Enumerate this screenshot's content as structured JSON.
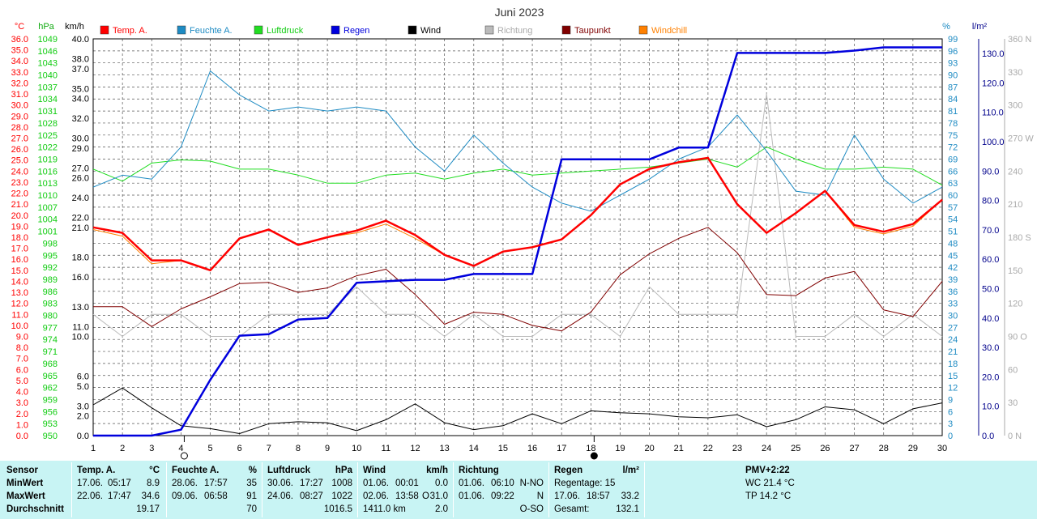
{
  "chart_data": {
    "type": "line",
    "title": "Juni 2023",
    "x": [
      1,
      2,
      3,
      4,
      5,
      6,
      7,
      8,
      9,
      10,
      11,
      12,
      13,
      14,
      15,
      16,
      17,
      18,
      19,
      20,
      21,
      22,
      23,
      24,
      25,
      26,
      27,
      28,
      29,
      30
    ],
    "x_moon_markers": [
      {
        "day": 4,
        "phase": "new"
      },
      {
        "day": 18,
        "phase": "full"
      }
    ],
    "axis_units": {
      "temp": "°C",
      "pressure": "hPa",
      "wind": "km/h",
      "humidity": "%",
      "rain": "l/m²",
      "direction": "°"
    },
    "axes": {
      "temp": {
        "ylim": [
          0,
          36
        ],
        "ticks": [
          "0.0",
          "1.0",
          "2.0",
          "3.0",
          "4.0",
          "5.0",
          "6.0",
          "7.0",
          "8.0",
          "9.0",
          "10.0",
          "11.0",
          "12.0",
          "13.0",
          "14.0",
          "15.0",
          "16.0",
          "17.0",
          "18.0",
          "19.0",
          "20.0",
          "21.0",
          "22.0",
          "23.0",
          "24.0",
          "25.0",
          "26.0",
          "27.0",
          "28.0",
          "29.0",
          "30.0",
          "31.0",
          "32.0",
          "33.0",
          "34.0",
          "35.0",
          "36.0"
        ]
      },
      "pressure": {
        "ylim": [
          950,
          1049
        ],
        "ticks": [
          "950",
          "953",
          "956",
          "959",
          "962",
          "965",
          "968",
          "971",
          "974",
          "977",
          "980",
          "983",
          "986",
          "989",
          "992",
          "995",
          "998",
          "1001",
          "1004",
          "1007",
          "1010",
          "1013",
          "1016",
          "1019",
          "1022",
          "1025",
          "1028",
          "1031",
          "1034",
          "1037",
          "1040",
          "1043",
          "1046",
          "1049"
        ]
      },
      "wind": {
        "ylim": [
          0,
          40
        ],
        "ticks": [
          "0.0",
          "2.0",
          "3.0",
          "5.0",
          "6.0",
          "10.0",
          "11.0",
          "13.0",
          "16.0",
          "18.0",
          "21.0",
          "22.0",
          "24.0",
          "26.0",
          "27.0",
          "29.0",
          "30.0",
          "32.0",
          "34.0",
          "35.0",
          "37.0",
          "38.0",
          "40.0"
        ],
        "tick_values": [
          0,
          2,
          3,
          5,
          6,
          10,
          11,
          13,
          16,
          18,
          21,
          22,
          24,
          26,
          27,
          29,
          30,
          32,
          34,
          35,
          37,
          38,
          40
        ]
      },
      "humidity": {
        "ylim": [
          0,
          99
        ],
        "ticks": [
          "0",
          "3",
          "6",
          "9",
          "12",
          "15",
          "18",
          "21",
          "24",
          "27",
          "30",
          "33",
          "36",
          "39",
          "42",
          "45",
          "48",
          "51",
          "54",
          "57",
          "60",
          "63",
          "66",
          "69",
          "72",
          "75",
          "78",
          "81",
          "84",
          "87",
          "90",
          "93",
          "96",
          "99"
        ]
      },
      "rain": {
        "ylim": [
          0,
          135
        ],
        "ticks": [
          "0.0",
          "10.0",
          "20.0",
          "30.0",
          "40.0",
          "50.0",
          "60.0",
          "70.0",
          "80.0",
          "90.0",
          "100.0",
          "110.0",
          "120.0",
          "130.0"
        ]
      },
      "direction": {
        "ylim": [
          0,
          360
        ],
        "ticks": [
          "0 N",
          "30",
          "60",
          "90 O",
          "120",
          "150",
          "180 S",
          "210",
          "240",
          "270 W",
          "300",
          "330",
          "360 N"
        ],
        "tick_values": [
          0,
          30,
          60,
          90,
          120,
          150,
          180,
          210,
          240,
          270,
          300,
          330,
          360
        ]
      }
    },
    "series": [
      {
        "name": "Temp. A.",
        "axis": "temp",
        "color": "#ff0000",
        "width": 2.5,
        "values": [
          18.9,
          18.4,
          15.9,
          15.9,
          15.0,
          17.9,
          18.7,
          17.3,
          18.0,
          18.6,
          19.5,
          18.2,
          16.4,
          15.4,
          16.7,
          17.1,
          17.8,
          20.0,
          22.8,
          24.2,
          24.8,
          25.2,
          21.0,
          18.4,
          20.2,
          22.2,
          19.1,
          18.5,
          19.2,
          21.4
        ]
      },
      {
        "name": "Feuchte A.",
        "axis": "humidity",
        "color": "#1e8bc3",
        "width": 1,
        "values": [
          62,
          65,
          64,
          72,
          91,
          85,
          81,
          82,
          81,
          82,
          81,
          72,
          66,
          75,
          68,
          62,
          58,
          56,
          60,
          64,
          69,
          72,
          80,
          71,
          61,
          60,
          75,
          64,
          58,
          62
        ]
      },
      {
        "name": "Luftdruck",
        "axis": "pressure",
        "color": "#22dd22",
        "width": 1,
        "values": [
          1016.5,
          1013.5,
          1018.0,
          1018.8,
          1018.5,
          1016.5,
          1016.5,
          1015.0,
          1013.0,
          1013.0,
          1015.0,
          1015.5,
          1014.0,
          1015.5,
          1016.5,
          1015.0,
          1015.5,
          1016.0,
          1016.5,
          1017.0,
          1018.0,
          1019.0,
          1017.0,
          1022.0,
          1019.0,
          1016.5,
          1016.5,
          1017.0,
          1016.5,
          1012.5
        ]
      },
      {
        "name": "Regen",
        "axis": "rain",
        "color": "#0000dd",
        "width": 2.5,
        "values": [
          0,
          0,
          0,
          2,
          19,
          34,
          34.5,
          39.5,
          40,
          52,
          52.5,
          53,
          53,
          55,
          55,
          55,
          94,
          94,
          94,
          94,
          98,
          98,
          130.2,
          130.2,
          130.2,
          130.2,
          131,
          132.1,
          132.1,
          132.1
        ]
      },
      {
        "name": "Wind",
        "axis": "wind",
        "color": "#000000",
        "width": 1,
        "values": [
          3.1,
          4.8,
          2.8,
          1.0,
          0.7,
          0.2,
          1.2,
          1.4,
          1.3,
          0.5,
          1.6,
          3.2,
          1.3,
          0.6,
          1.0,
          2.2,
          1.2,
          2.5,
          2.3,
          2.2,
          1.9,
          1.8,
          2.1,
          0.9,
          1.6,
          2.9,
          2.6,
          1.2,
          2.7,
          3.3
        ]
      },
      {
        "name": "Richtung",
        "axis": "direction",
        "color": "#bbbbbb",
        "width": 1,
        "values": [
          110,
          90,
          110,
          110,
          90,
          90,
          110,
          110,
          110,
          135,
          110,
          110,
          90,
          110,
          90,
          90,
          110,
          110,
          90,
          135,
          110,
          110,
          110,
          310,
          90,
          90,
          110,
          90,
          110,
          90
        ]
      },
      {
        "name": "Taupunkt",
        "axis": "temp",
        "color": "#800000",
        "width": 1,
        "values": [
          11.7,
          11.7,
          9.9,
          11.5,
          12.6,
          13.8,
          13.9,
          13.0,
          13.4,
          14.5,
          15.1,
          12.8,
          10.1,
          11.2,
          11.0,
          10.0,
          9.5,
          11.2,
          14.6,
          16.5,
          17.9,
          18.9,
          16.6,
          12.8,
          12.7,
          14.3,
          14.9,
          11.4,
          10.8,
          14.0
        ]
      },
      {
        "name": "Windchill",
        "axis": "temp",
        "color": "#ff8000",
        "width": 1,
        "values": [
          18.7,
          18.1,
          15.6,
          15.9,
          15.0,
          17.9,
          18.7,
          17.3,
          18.0,
          18.4,
          19.2,
          17.9,
          16.4,
          15.4,
          16.7,
          17.1,
          17.8,
          20.0,
          22.8,
          24.2,
          24.8,
          25.2,
          21.0,
          18.4,
          20.2,
          22.2,
          18.9,
          18.3,
          19.0,
          21.4
        ]
      }
    ]
  },
  "stats": {
    "sensor": {
      "title": "Sensor",
      "rows": [
        "MinWert",
        "MaxWert",
        "Durchschnitt"
      ]
    },
    "temp": {
      "title": "Temp. A.",
      "unit": "°C",
      "min_date": "17.06.",
      "min_time": "05:17",
      "min_val": "8.9",
      "max_date": "22.06.",
      "max_time": "17:47",
      "max_val": "34.6",
      "avg": "19.17"
    },
    "humidity": {
      "title": "Feuchte A.",
      "unit": "%",
      "min_date": "28.06.",
      "min_time": "17:57",
      "min_val": "35",
      "max_date": "09.06.",
      "max_time": "06:58",
      "max_val": "91",
      "avg": "70"
    },
    "pressure": {
      "title": "Luftdruck",
      "unit": "hPa",
      "min_date": "30.06.",
      "min_time": "17:27",
      "min_val": "1008",
      "max_date": "24.06.",
      "max_time": "08:27",
      "max_val": "1022",
      "avg": "1016.5"
    },
    "wind": {
      "title": "Wind",
      "unit": "km/h",
      "min_date": "01.06.",
      "min_time": "00:01",
      "min_val": "0.0",
      "max_date": "02.06.",
      "max_time": "13:58",
      "max_dir": "O",
      "max_val": "31.0",
      "total": "1411.0 km",
      "avg": "2.0"
    },
    "direction": {
      "title": "Richtung",
      "min_date": "01.06.",
      "min_time": "06:10",
      "min_val": "N-NO",
      "max_date": "01.06.",
      "max_time": "09:22",
      "max_val": "N",
      "avg": "O-SO"
    },
    "rain": {
      "title": "Regen",
      "unit": "l/m²",
      "days_label": "Regentage: 15",
      "max_date": "17.06.",
      "max_time": "18:57",
      "max_val": "33.2",
      "total_label": "Gesamt:",
      "total": "132.1"
    },
    "pmv": {
      "title": "PMV+2:22",
      "wc": "WC 21.4 °C",
      "tp": "TP 14.2 °C"
    }
  }
}
